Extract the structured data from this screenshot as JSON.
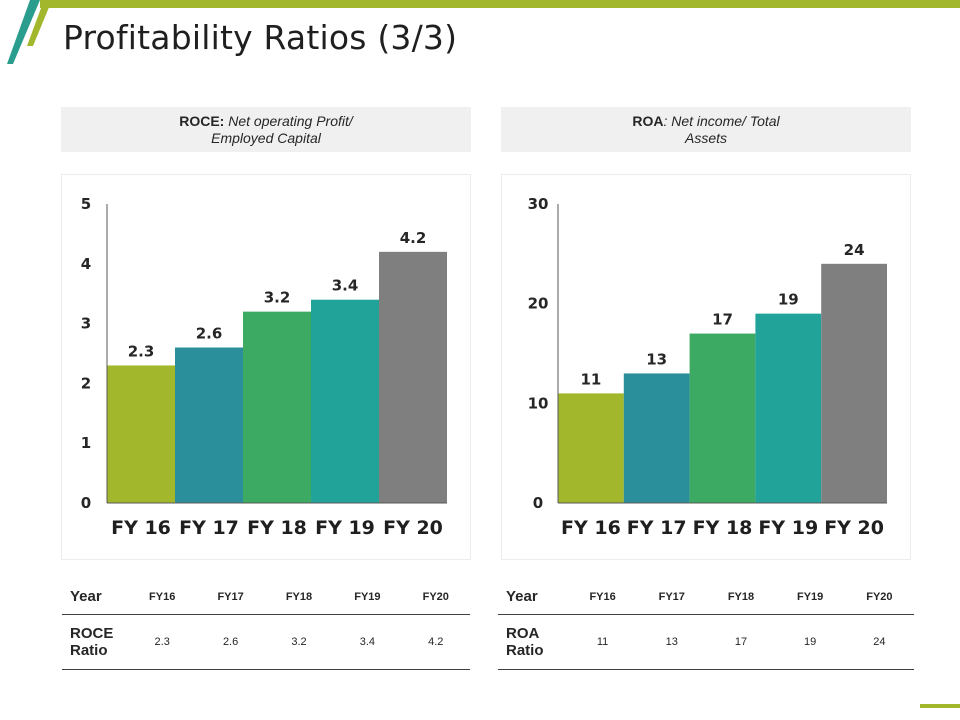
{
  "title": "Profitability Ratios (3/3)",
  "colors": {
    "accent": "#a2b72c",
    "teal_dark": "#2a9d8f",
    "bar_colors": [
      "#a2b72c",
      "#2a8f9a",
      "#3daa64",
      "#22a39a",
      "#7f7f7f"
    ]
  },
  "roce": {
    "label": "ROCE:",
    "formula_line1": " Net operating Profit/",
    "formula_line2": "Employed Capital"
  },
  "roa": {
    "label": "ROA",
    "formula_line1": ": Net income/ Total",
    "formula_line2": "Assets"
  },
  "chart_data": [
    {
      "type": "bar",
      "name": "ROCE",
      "categories": [
        "FY 16",
        "FY 17",
        "FY 18",
        "FY 19",
        "FY 20"
      ],
      "values": [
        2.3,
        2.6,
        3.2,
        3.4,
        4.2
      ],
      "value_labels": [
        "2.3",
        "2.6",
        "3.2",
        "3.4",
        "4.2"
      ],
      "yticks": [
        "0",
        "1",
        "2",
        "3",
        "4",
        "5"
      ],
      "ylim": [
        0,
        5
      ],
      "grid": false
    },
    {
      "type": "bar",
      "name": "ROA",
      "categories": [
        "FY 16",
        "FY 17",
        "FY 18",
        "FY 19",
        "FY 20"
      ],
      "values": [
        11,
        13,
        17,
        19,
        24
      ],
      "value_labels": [
        "11",
        "13",
        "17",
        "19",
        "24"
      ],
      "yticks": [
        "0",
        "10",
        "20",
        "30"
      ],
      "ylim": [
        0,
        30
      ],
      "grid": false
    }
  ],
  "tables": {
    "roce": {
      "year_label": "Year",
      "row_label_line1": "ROCE",
      "row_label_line2": "Ratio",
      "years": [
        "FY16",
        "FY17",
        "FY18",
        "FY19",
        "FY20"
      ],
      "values": [
        "2.3",
        "2.6",
        "3.2",
        "3.4",
        "4.2"
      ]
    },
    "roa": {
      "year_label": "Year",
      "row_label_line1": "ROA",
      "row_label_line2": "Ratio",
      "years": [
        "FY16",
        "FY17",
        "FY18",
        "FY19",
        "FY20"
      ],
      "values": [
        "11",
        "13",
        "17",
        "19",
        "24"
      ]
    }
  }
}
